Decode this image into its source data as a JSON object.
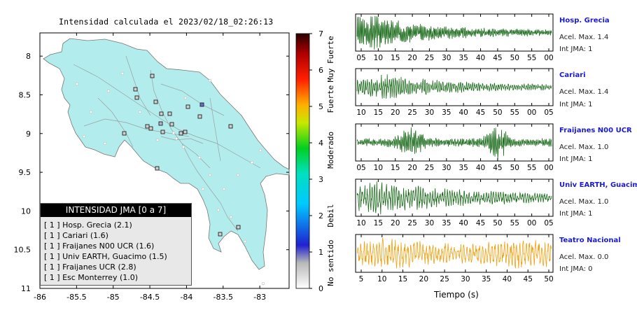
{
  "map": {
    "title": "Intensidad calculada el 2023/02/18_02:26:13",
    "lon_ticks": [
      "-86",
      "-85.5",
      "-85",
      "-84.5",
      "-84",
      "-83.5",
      "-83"
    ],
    "lat_ticks": [
      "11",
      "10.5",
      "10",
      "9.5",
      "9",
      "8.5",
      "8"
    ],
    "land_color": "#b2ecec",
    "colorbar": {
      "ticks": [
        "0",
        "1",
        "2",
        "3",
        "4",
        "5",
        "6",
        "7"
      ],
      "labels": [
        "No sentido",
        "Debil",
        "Moderado",
        "Fuerte",
        "Muy Fuerte"
      ]
    }
  },
  "legend": {
    "title": "INTENSIDAD JMA [0 a 7]",
    "rows": [
      "[ 1 ]  Hosp. Grecia (2.1)",
      "[ 1 ]  Cariari (1.6)",
      "[ 1 ]  Fraijanes N00 UCR (1.6)",
      "[ 1 ]  Univ EARTH, Guacimo (1.5)",
      "[ 1 ]  Fraijanes UCR (2.8)",
      "[ 1 ]  Esc Monterrey (1.0)"
    ]
  },
  "stations": [
    {
      "name": "Hosp. Grecia",
      "acc": "Acel. Max. 1.4",
      "int": "Int JMA: 1",
      "color": "#1a6b1a",
      "ticks": [
        "05",
        "10",
        "15",
        "20",
        "25",
        "30",
        "35",
        "40",
        "45",
        "50",
        "55",
        "00"
      ]
    },
    {
      "name": "Cariari",
      "acc": "Acel. Max. 1.4",
      "int": "Int JMA: 1",
      "color": "#1a6b1a",
      "ticks": [
        "10",
        "15",
        "20",
        "25",
        "30",
        "35",
        "40",
        "45",
        "50",
        "55",
        "00",
        "05"
      ]
    },
    {
      "name": "Fraijanes N00 UCR",
      "acc": "Acel. Max. 1.0",
      "int": "Int JMA: 1",
      "color": "#1a6b1a",
      "ticks": [
        "05",
        "10",
        "15",
        "20",
        "25",
        "30",
        "35",
        "40",
        "45",
        "50",
        "55",
        "00"
      ]
    },
    {
      "name": "Univ EARTH, Guacimo",
      "acc": "Acel. Max. 1.0",
      "int": "Int JMA: 1",
      "color": "#1a6b1a",
      "ticks": [
        "10",
        "15",
        "20",
        "25",
        "30",
        "35",
        "40",
        "45",
        "50",
        "55",
        "00",
        "05"
      ]
    },
    {
      "name": "Teatro Nacional",
      "acc": "Acel. Max. 0.0",
      "int": "Int JMA: 0",
      "color": "#f0a010",
      "ticks": [
        "5",
        "10",
        "15",
        "20",
        "25",
        "30",
        "35",
        "40",
        "45",
        "50"
      ]
    }
  ],
  "traces_xlabel": "Tiempo (s)",
  "chart_data": [
    {
      "type": "scatter",
      "title": "Intensidad calculada el 2023/02/18_02:26:13",
      "xlim": [
        -86,
        -82.6
      ],
      "ylim": [
        8,
        11.3
      ],
      "x_ticks": [
        -86,
        -85.5,
        -85,
        -84.5,
        -84,
        -83.5,
        -83
      ],
      "y_ticks": [
        8,
        8.5,
        9,
        9.5,
        10,
        10.5,
        11
      ],
      "colorbar": {
        "min": 0,
        "max": 7
      }
    },
    {
      "type": "line",
      "series": [
        {
          "name": "Hosp. Grecia",
          "peak_acceleration": 1.4,
          "jma_intensity": 1
        },
        {
          "name": "Cariari",
          "peak_acceleration": 1.4,
          "jma_intensity": 1
        },
        {
          "name": "Fraijanes N00 UCR",
          "peak_acceleration": 1.0,
          "jma_intensity": 1
        },
        {
          "name": "Univ EARTH, Guacimo",
          "peak_acceleration": 1.0,
          "jma_intensity": 1
        },
        {
          "name": "Teatro Nacional",
          "peak_acceleration": 0.0,
          "jma_intensity": 0
        }
      ],
      "xlabel": "Tiempo (s)"
    }
  ]
}
